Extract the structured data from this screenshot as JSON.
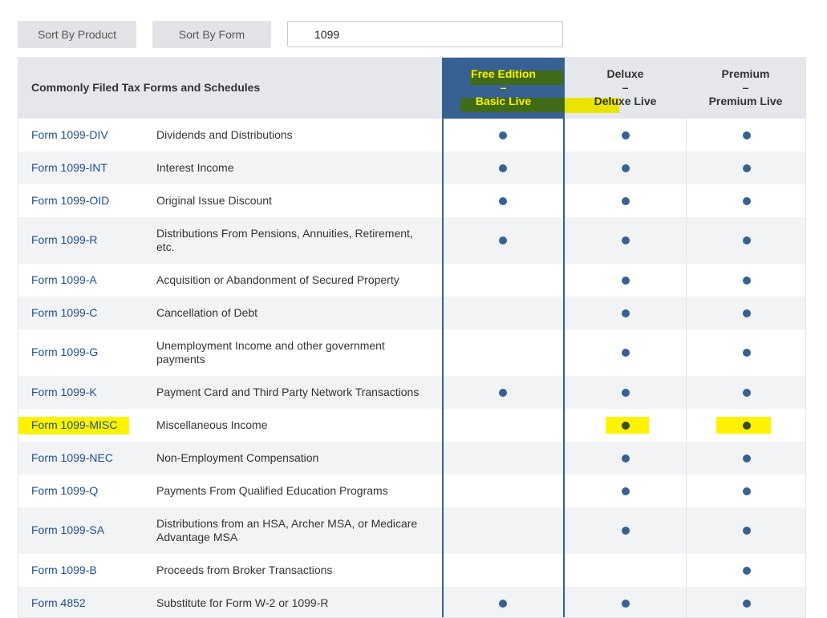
{
  "controls": {
    "sort_product_label": "Sort By Product",
    "sort_form_label": "Sort By Form",
    "search_value": "1099"
  },
  "table": {
    "title": "Commonly Filed Tax Forms and Schedules",
    "columns": [
      {
        "line1": "Free Edition",
        "dash": "–",
        "line2": "Basic Live"
      },
      {
        "line1": "Deluxe",
        "dash": "–",
        "line2": "Deluxe Live"
      },
      {
        "line1": "Premium",
        "dash": "–",
        "line2": "Premium Live"
      }
    ],
    "rows": [
      {
        "form": "Form 1099-DIV",
        "description": "Dividends and Distributions",
        "free": true,
        "deluxe": true,
        "premium": true
      },
      {
        "form": "Form 1099-INT",
        "description": "Interest Income",
        "free": true,
        "deluxe": true,
        "premium": true
      },
      {
        "form": "Form 1099-OID",
        "description": "Original Issue Discount",
        "free": true,
        "deluxe": true,
        "premium": true
      },
      {
        "form": "Form 1099-R",
        "description": "Distributions From Pensions, Annuities, Retirement, etc.",
        "free": true,
        "deluxe": true,
        "premium": true
      },
      {
        "form": "Form 1099-A",
        "description": "Acquisition or Abandonment of Secured Property",
        "free": false,
        "deluxe": true,
        "premium": true
      },
      {
        "form": "Form 1099-C",
        "description": "Cancellation of Debt",
        "free": false,
        "deluxe": true,
        "premium": true
      },
      {
        "form": "Form 1099-G",
        "description": "Unemployment Income and other government payments",
        "free": false,
        "deluxe": true,
        "premium": true
      },
      {
        "form": "Form 1099-K",
        "description": "Payment Card and Third Party Network Transactions",
        "free": true,
        "deluxe": true,
        "premium": true
      },
      {
        "form": "Form 1099-MISC",
        "description": "Miscellaneous Income",
        "free": false,
        "deluxe": true,
        "premium": true,
        "highlighted": true
      },
      {
        "form": "Form 1099-NEC",
        "description": "Non-Employment Compensation",
        "free": false,
        "deluxe": true,
        "premium": true
      },
      {
        "form": "Form 1099-Q",
        "description": "Payments From Qualified Education Programs",
        "free": false,
        "deluxe": true,
        "premium": true
      },
      {
        "form": "Form 1099-SA",
        "description": "Distributions from an HSA, Archer MSA, or Medicare Advantage MSA",
        "free": false,
        "deluxe": true,
        "premium": true
      },
      {
        "form": "Form 1099-B",
        "description": "Proceeds from Broker Transactions",
        "free": false,
        "deluxe": false,
        "premium": true
      },
      {
        "form": "Form 4852",
        "description": "Substitute for Form W-2 or 1099-R",
        "free": true,
        "deluxe": true,
        "premium": true
      }
    ]
  },
  "colors": {
    "accent": "#386193",
    "link": "#1d4f8f",
    "highlight": "#fff200",
    "highlight_dark": "#3f6a17"
  }
}
